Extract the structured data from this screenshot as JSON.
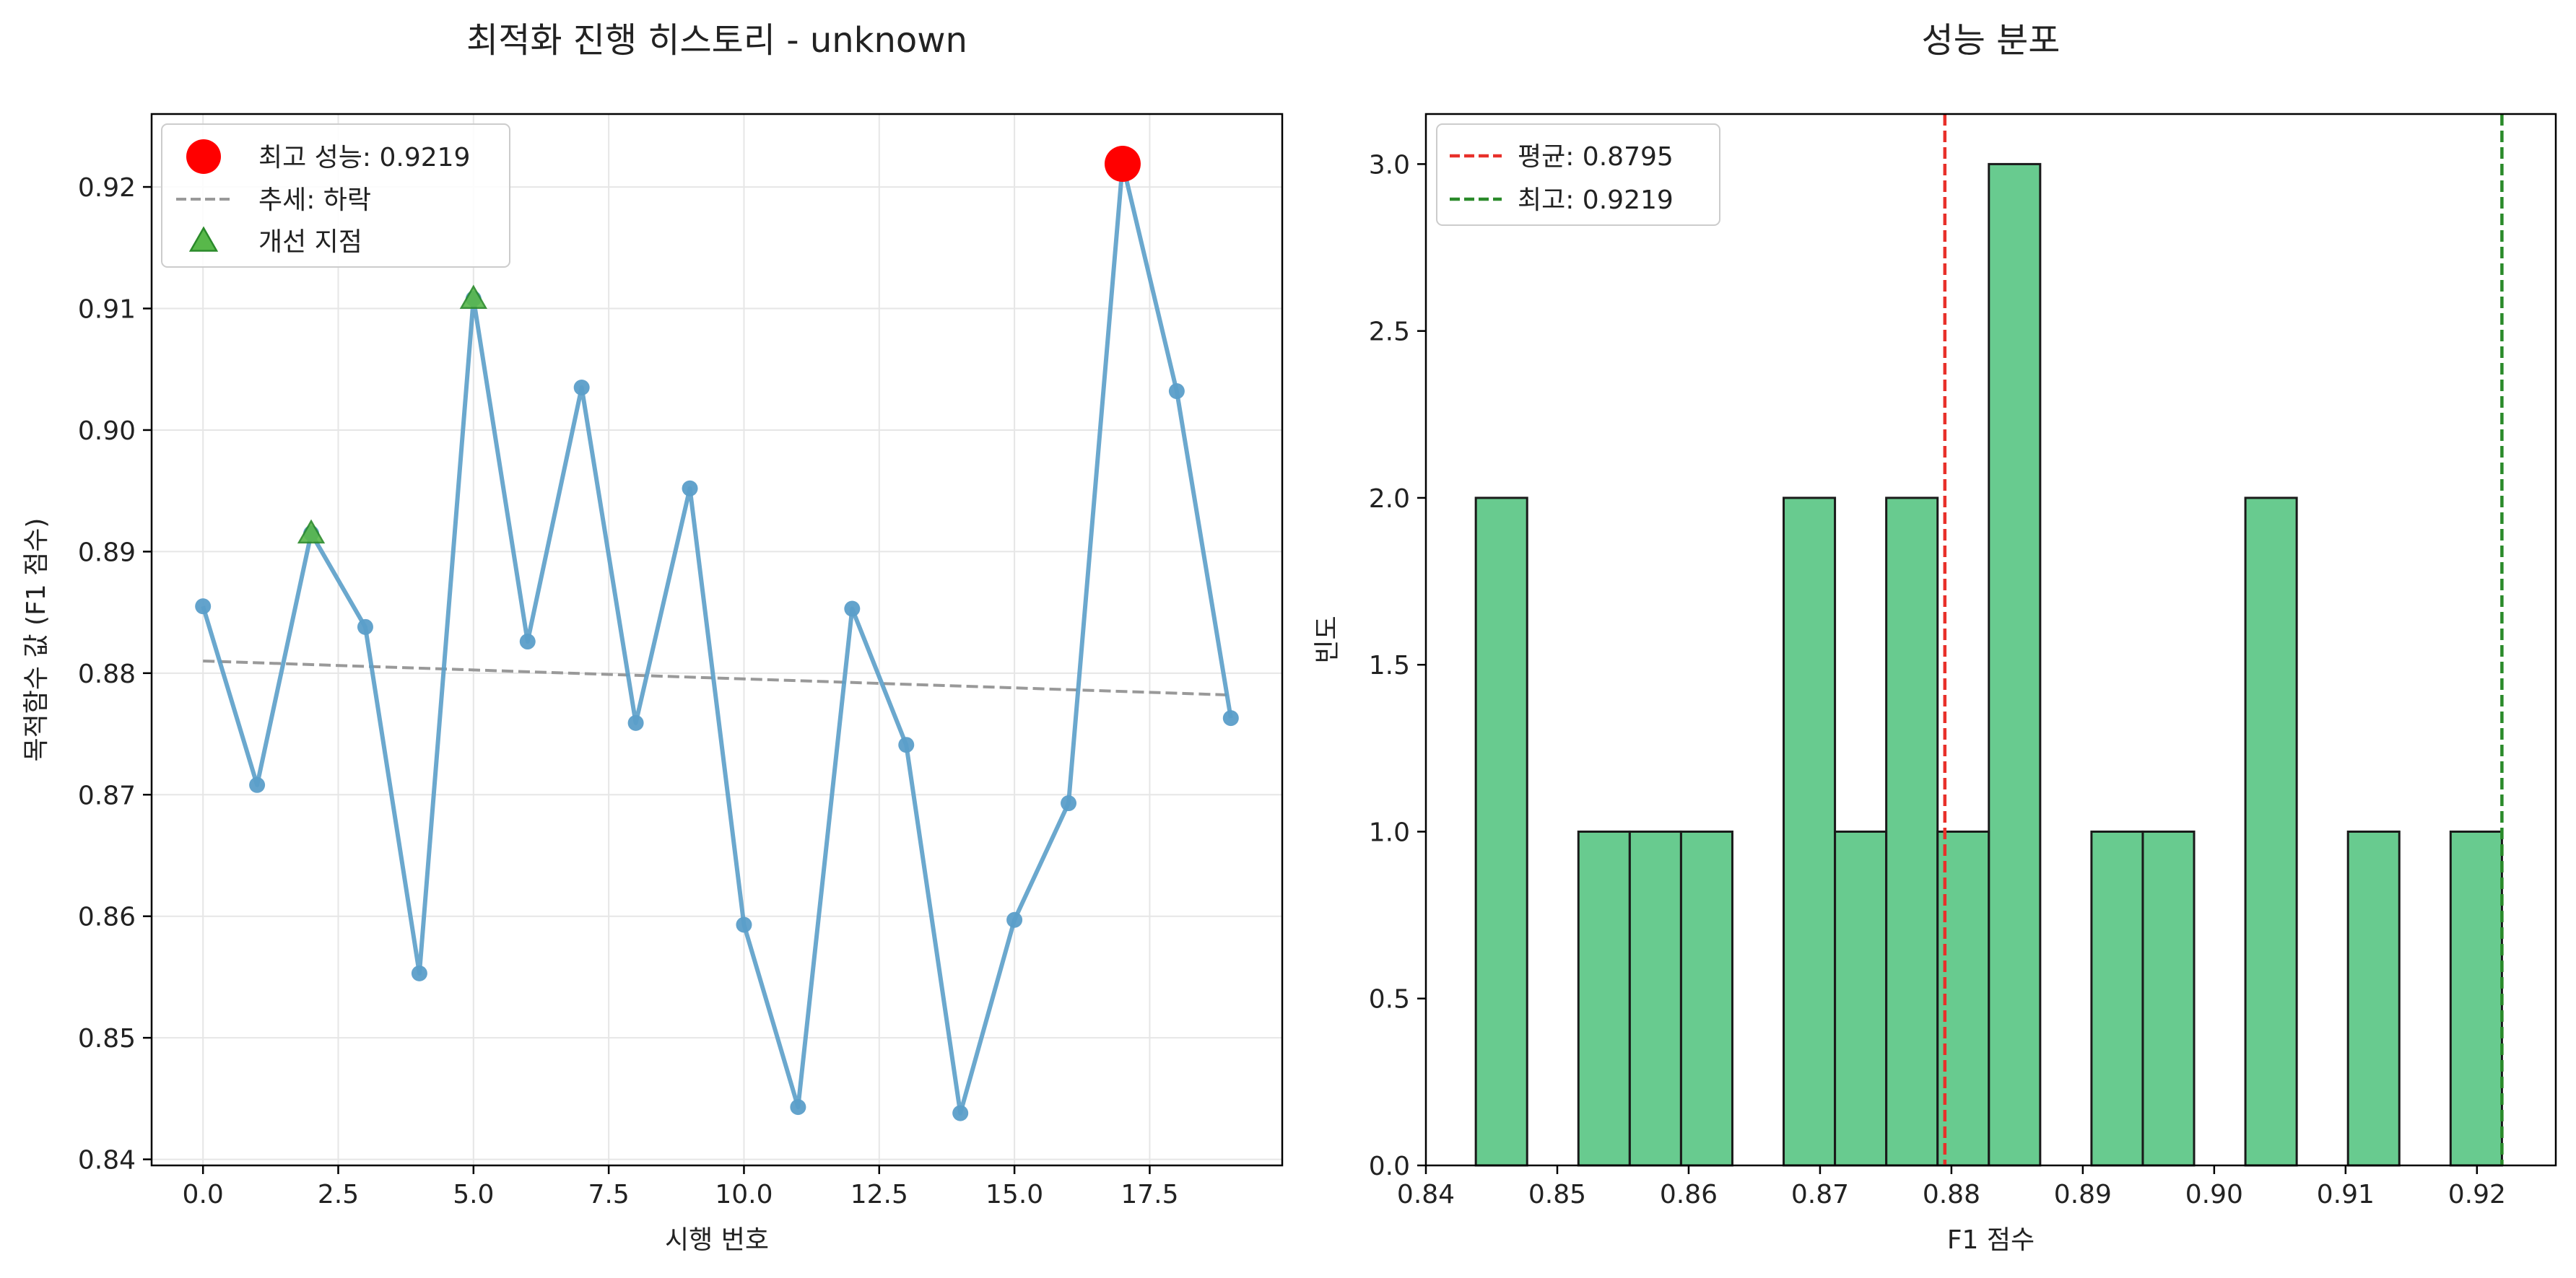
{
  "chart_data": [
    {
      "type": "line",
      "title": "최적화 진행 히스토리 - unknown",
      "xlabel": "시행 번호",
      "ylabel": "목적함수 값 (F1 점수)",
      "xlim": [
        -0.95,
        19.95
      ],
      "ylim": [
        0.8395,
        0.926
      ],
      "xticks": [
        0.0,
        2.5,
        5.0,
        7.5,
        10.0,
        12.5,
        15.0,
        17.5
      ],
      "xtick_labels": [
        "0.0",
        "2.5",
        "5.0",
        "7.5",
        "10.0",
        "12.5",
        "15.0",
        "17.5"
      ],
      "yticks": [
        0.84,
        0.85,
        0.86,
        0.87,
        0.88,
        0.89,
        0.9,
        0.91,
        0.92
      ],
      "ytick_labels": [
        "0.84",
        "0.85",
        "0.86",
        "0.87",
        "0.88",
        "0.89",
        "0.90",
        "0.91",
        "0.92"
      ],
      "grid": true,
      "legend_position": "top-left",
      "series": [
        {
          "role": "trials",
          "color": "#5b9ec9",
          "x": [
            0,
            1,
            2,
            3,
            4,
            5,
            6,
            7,
            8,
            9,
            10,
            11,
            12,
            13,
            14,
            15,
            16,
            17,
            18,
            19
          ],
          "y": [
            0.8855,
            0.8708,
            0.8915,
            0.8838,
            0.8553,
            0.9108,
            0.8826,
            0.9035,
            0.8759,
            0.8952,
            0.8593,
            0.8443,
            0.8853,
            0.8741,
            0.8438,
            0.8597,
            0.8693,
            0.9219,
            0.9032,
            0.8763
          ]
        },
        {
          "role": "best",
          "name": "최고 성능: 0.9219",
          "color": "#ff0000",
          "x": [
            17
          ],
          "y": [
            0.9219
          ]
        },
        {
          "role": "trend",
          "name": "추세: 하락",
          "color": "#999999",
          "x": [
            0,
            19
          ],
          "y": [
            0.881,
            0.8782
          ]
        },
        {
          "role": "improvements",
          "name": "개선 지점",
          "color": "#2ca02c",
          "x": [
            2,
            5
          ],
          "y": [
            0.8915,
            0.9108
          ]
        }
      ]
    },
    {
      "type": "bar",
      "subtype": "histogram",
      "title": "성능 분포",
      "xlabel": "F1 점수",
      "ylabel": "빈도",
      "xlim": [
        0.84,
        0.926
      ],
      "ylim": [
        0,
        3.15
      ],
      "xticks": [
        0.84,
        0.85,
        0.86,
        0.87,
        0.88,
        0.89,
        0.9,
        0.91,
        0.92
      ],
      "xtick_labels": [
        "0.84",
        "0.85",
        "0.86",
        "0.87",
        "0.88",
        "0.89",
        "0.90",
        "0.91",
        "0.92"
      ],
      "yticks": [
        0,
        0.5,
        1.0,
        1.5,
        2.0,
        2.5,
        3.0
      ],
      "ytick_labels": [
        "0.0",
        "0.5",
        "1.0",
        "1.5",
        "2.0",
        "2.5",
        "3.0"
      ],
      "grid": false,
      "legend_position": "top-left",
      "bar_color": "#3dbc70",
      "bins_start": 0.8438,
      "bin_width": 0.003905,
      "values": [
        2,
        0,
        1,
        1,
        1,
        0,
        2,
        1,
        2,
        1,
        3,
        0,
        1,
        1,
        0,
        2,
        0,
        1,
        0,
        1
      ],
      "lines": [
        {
          "name": "평균: 0.8795",
          "x": 0.8795,
          "color": "#e8302a"
        },
        {
          "name": "최고: 0.9219",
          "x": 0.9219,
          "color": "#2a8a2a"
        }
      ]
    }
  ]
}
